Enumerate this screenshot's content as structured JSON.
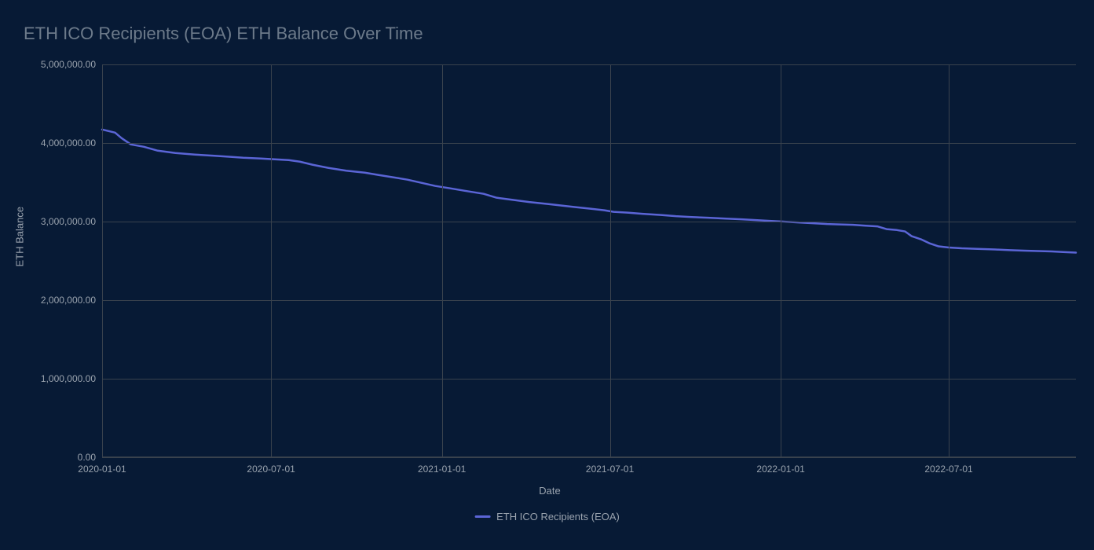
{
  "chart": {
    "type": "line",
    "title": "ETH ICO Recipients (EOA) ETH Balance Over Time",
    "x_axis_title": "Date",
    "y_axis_title": "ETH Balance",
    "background_color": "#071a35",
    "grid_color": "#39424d",
    "text_color": "#9aa3ae",
    "title_color": "#6c7a8a",
    "title_fontsize": 22,
    "label_fontsize": 13,
    "tick_fontsize": 12,
    "line_color": "#5b65d6",
    "line_width": 2.5,
    "ylim": [
      0,
      5000000
    ],
    "y_ticks": [
      {
        "value": 0,
        "label": "0.00"
      },
      {
        "value": 1000000,
        "label": "1,000,000.00"
      },
      {
        "value": 2000000,
        "label": "2,000,000.00"
      },
      {
        "value": 3000000,
        "label": "3,000,000.00"
      },
      {
        "value": 4000000,
        "label": "4,000,000.00"
      },
      {
        "value": 5000000,
        "label": "5,000,000.00"
      }
    ],
    "x_range": [
      "2020-01-01",
      "2022-11-15"
    ],
    "x_ticks": [
      {
        "value": "2020-01-01",
        "label": "2020-01-01"
      },
      {
        "value": "2020-07-01",
        "label": "2020-07-01"
      },
      {
        "value": "2021-01-01",
        "label": "2021-01-01"
      },
      {
        "value": "2021-07-01",
        "label": "2021-07-01"
      },
      {
        "value": "2022-01-01",
        "label": "2022-01-01"
      },
      {
        "value": "2022-07-01",
        "label": "2022-07-01"
      }
    ],
    "legend": {
      "label": "ETH ICO Recipients (EOA)",
      "color": "#5b65d6"
    },
    "series": [
      {
        "name": "ETH ICO Recipients (EOA)",
        "color": "#5b65d6",
        "points": [
          {
            "x": "2020-01-01",
            "y": 4170000
          },
          {
            "x": "2020-01-15",
            "y": 4130000
          },
          {
            "x": "2020-01-22",
            "y": 4060000
          },
          {
            "x": "2020-02-01",
            "y": 3980000
          },
          {
            "x": "2020-02-15",
            "y": 3950000
          },
          {
            "x": "2020-03-01",
            "y": 3900000
          },
          {
            "x": "2020-03-20",
            "y": 3870000
          },
          {
            "x": "2020-04-10",
            "y": 3850000
          },
          {
            "x": "2020-05-01",
            "y": 3835000
          },
          {
            "x": "2020-05-20",
            "y": 3820000
          },
          {
            "x": "2020-06-01",
            "y": 3810000
          },
          {
            "x": "2020-06-20",
            "y": 3800000
          },
          {
            "x": "2020-07-05",
            "y": 3790000
          },
          {
            "x": "2020-07-20",
            "y": 3780000
          },
          {
            "x": "2020-08-01",
            "y": 3760000
          },
          {
            "x": "2020-08-15",
            "y": 3720000
          },
          {
            "x": "2020-09-01",
            "y": 3680000
          },
          {
            "x": "2020-09-20",
            "y": 3645000
          },
          {
            "x": "2020-10-10",
            "y": 3620000
          },
          {
            "x": "2020-10-25",
            "y": 3590000
          },
          {
            "x": "2020-11-10",
            "y": 3560000
          },
          {
            "x": "2020-11-25",
            "y": 3530000
          },
          {
            "x": "2020-12-10",
            "y": 3490000
          },
          {
            "x": "2020-12-25",
            "y": 3450000
          },
          {
            "x": "2021-01-10",
            "y": 3420000
          },
          {
            "x": "2021-01-25",
            "y": 3390000
          },
          {
            "x": "2021-02-15",
            "y": 3350000
          },
          {
            "x": "2021-03-01",
            "y": 3300000
          },
          {
            "x": "2021-03-20",
            "y": 3270000
          },
          {
            "x": "2021-04-05",
            "y": 3245000
          },
          {
            "x": "2021-04-25",
            "y": 3220000
          },
          {
            "x": "2021-05-10",
            "y": 3200000
          },
          {
            "x": "2021-05-25",
            "y": 3180000
          },
          {
            "x": "2021-06-10",
            "y": 3160000
          },
          {
            "x": "2021-06-25",
            "y": 3140000
          },
          {
            "x": "2021-07-05",
            "y": 3120000
          },
          {
            "x": "2021-07-20",
            "y": 3110000
          },
          {
            "x": "2021-08-05",
            "y": 3095000
          },
          {
            "x": "2021-08-25",
            "y": 3080000
          },
          {
            "x": "2021-09-10",
            "y": 3065000
          },
          {
            "x": "2021-09-25",
            "y": 3055000
          },
          {
            "x": "2021-10-15",
            "y": 3045000
          },
          {
            "x": "2021-11-01",
            "y": 3035000
          },
          {
            "x": "2021-11-20",
            "y": 3025000
          },
          {
            "x": "2021-12-05",
            "y": 3015000
          },
          {
            "x": "2021-12-20",
            "y": 3005000
          },
          {
            "x": "2022-01-05",
            "y": 2995000
          },
          {
            "x": "2022-01-20",
            "y": 2985000
          },
          {
            "x": "2022-02-05",
            "y": 2975000
          },
          {
            "x": "2022-02-20",
            "y": 2965000
          },
          {
            "x": "2022-03-05",
            "y": 2960000
          },
          {
            "x": "2022-03-20",
            "y": 2955000
          },
          {
            "x": "2022-04-01",
            "y": 2945000
          },
          {
            "x": "2022-04-15",
            "y": 2935000
          },
          {
            "x": "2022-04-25",
            "y": 2900000
          },
          {
            "x": "2022-05-05",
            "y": 2890000
          },
          {
            "x": "2022-05-15",
            "y": 2870000
          },
          {
            "x": "2022-05-22",
            "y": 2810000
          },
          {
            "x": "2022-06-01",
            "y": 2770000
          },
          {
            "x": "2022-06-10",
            "y": 2720000
          },
          {
            "x": "2022-06-20",
            "y": 2680000
          },
          {
            "x": "2022-07-01",
            "y": 2665000
          },
          {
            "x": "2022-07-15",
            "y": 2655000
          },
          {
            "x": "2022-08-01",
            "y": 2648000
          },
          {
            "x": "2022-08-20",
            "y": 2640000
          },
          {
            "x": "2022-09-05",
            "y": 2632000
          },
          {
            "x": "2022-09-20",
            "y": 2625000
          },
          {
            "x": "2022-10-05",
            "y": 2620000
          },
          {
            "x": "2022-10-20",
            "y": 2615000
          },
          {
            "x": "2022-11-01",
            "y": 2608000
          },
          {
            "x": "2022-11-15",
            "y": 2600000
          }
        ]
      }
    ]
  }
}
